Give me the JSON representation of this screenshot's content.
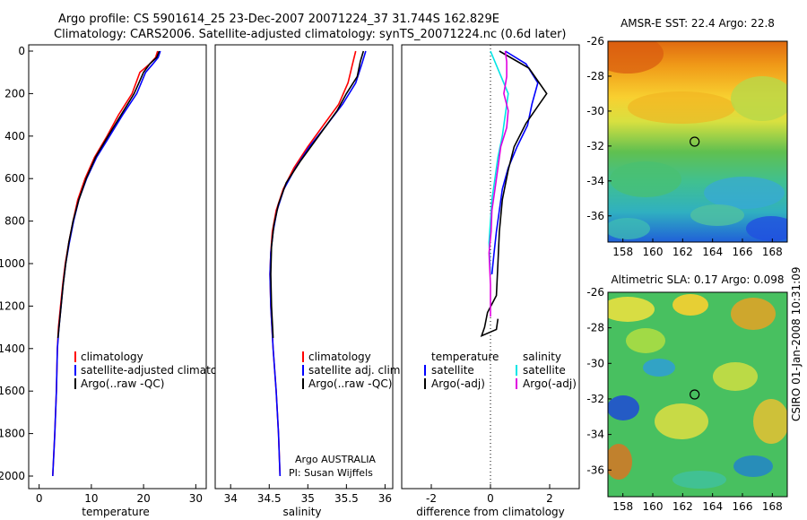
{
  "title_line1": "Argo profile: CS 5901614_25 23-Dec-2007 20071224_37 31.744S 162.829E",
  "title_line2": "Climatology: CARS2006. Satellite-adjusted climatology: synTS_20071224.nc (0.6d later)",
  "side_label": "CSIRO 01-Jan-2008 10:31:09",
  "credit": {
    "line1": "Argo AUSTRALIA",
    "line2": "PI: Susan Wijffels"
  },
  "colors": {
    "climatology": "#ff0000",
    "satellite": "#0000ff",
    "argo": "#000000",
    "sal_satellite": "#00e5e5",
    "sal_argo": "#e000e0"
  },
  "chart_data": [
    {
      "type": "line",
      "xlabel": "temperature",
      "xlim": [
        -2,
        32
      ],
      "xticks": [
        0,
        10,
        20,
        30
      ],
      "ylim": [
        2050,
        0
      ],
      "yticks": [
        0,
        200,
        400,
        600,
        800,
        1000,
        1200,
        1400,
        1600,
        1800,
        2000
      ],
      "legend": [
        "climatology",
        "satellite-adjusted climatology",
        "Argo(..raw -QC)"
      ],
      "series": [
        {
          "name": "climatology",
          "color": "climatology",
          "points": [
            [
              22.7,
              0
            ],
            [
              22.3,
              30
            ],
            [
              21.2,
              60
            ],
            [
              19.3,
              100
            ],
            [
              17.8,
              200
            ],
            [
              15.2,
              300
            ],
            [
              13.0,
              400
            ],
            [
              10.6,
              500
            ],
            [
              8.8,
              600
            ],
            [
              7.4,
              700
            ],
            [
              6.5,
              800
            ],
            [
              5.7,
              900
            ],
            [
              5.0,
              1000
            ],
            [
              4.5,
              1100
            ],
            [
              4.1,
              1200
            ],
            [
              3.7,
              1300
            ],
            [
              3.5,
              1400
            ],
            [
              3.3,
              1600
            ],
            [
              3.0,
              1800
            ],
            [
              2.6,
              2000
            ]
          ]
        },
        {
          "name": "satellite-adjusted climatology",
          "color": "satellite",
          "points": [
            [
              23.2,
              0
            ],
            [
              22.8,
              30
            ],
            [
              21.8,
              60
            ],
            [
              20.4,
              100
            ],
            [
              18.7,
              200
            ],
            [
              16.0,
              300
            ],
            [
              13.5,
              400
            ],
            [
              11.0,
              500
            ],
            [
              9.1,
              600
            ],
            [
              7.6,
              700
            ],
            [
              6.6,
              800
            ],
            [
              5.8,
              900
            ],
            [
              5.1,
              1000
            ],
            [
              4.6,
              1100
            ],
            [
              4.2,
              1200
            ],
            [
              3.8,
              1300
            ],
            [
              3.5,
              1400
            ],
            [
              3.3,
              1600
            ],
            [
              3.0,
              1800
            ],
            [
              2.6,
              2000
            ]
          ]
        },
        {
          "name": "Argo(..raw -QC)",
          "color": "argo",
          "points": [
            [
              23.0,
              0
            ],
            [
              22.5,
              30
            ],
            [
              21.2,
              60
            ],
            [
              20.0,
              100
            ],
            [
              18.2,
              200
            ],
            [
              15.7,
              300
            ],
            [
              13.2,
              400
            ],
            [
              10.8,
              500
            ],
            [
              9.0,
              600
            ],
            [
              7.6,
              700
            ],
            [
              6.5,
              800
            ],
            [
              5.7,
              900
            ],
            [
              5.1,
              1000
            ],
            [
              4.6,
              1100
            ],
            [
              4.2,
              1200
            ],
            [
              3.8,
              1300
            ],
            [
              3.6,
              1350
            ]
          ]
        }
      ]
    },
    {
      "type": "line",
      "xlabel": "salinity",
      "xlim": [
        33.8,
        36.1
      ],
      "xticks": [
        34,
        34.5,
        35,
        35.5,
        36
      ],
      "ylim": [
        2050,
        0
      ],
      "legend": [
        "climatology",
        "satellite adj. clim.",
        "Argo(..raw -QC)"
      ],
      "series": [
        {
          "name": "climatology",
          "color": "climatology",
          "points": [
            [
              35.62,
              0
            ],
            [
              35.58,
              60
            ],
            [
              35.52,
              150
            ],
            [
              35.4,
              250
            ],
            [
              35.2,
              350
            ],
            [
              35.0,
              450
            ],
            [
              34.82,
              550
            ],
            [
              34.68,
              650
            ],
            [
              34.59,
              750
            ],
            [
              34.54,
              850
            ],
            [
              34.52,
              950
            ],
            [
              34.51,
              1050
            ],
            [
              34.52,
              1200
            ],
            [
              34.55,
              1400
            ],
            [
              34.59,
              1600
            ],
            [
              34.62,
              1800
            ],
            [
              34.64,
              2000
            ]
          ]
        },
        {
          "name": "satellite adj. clim.",
          "color": "satellite",
          "points": [
            [
              35.75,
              0
            ],
            [
              35.7,
              60
            ],
            [
              35.62,
              150
            ],
            [
              35.45,
              250
            ],
            [
              35.24,
              350
            ],
            [
              35.02,
              450
            ],
            [
              34.84,
              550
            ],
            [
              34.69,
              650
            ],
            [
              34.6,
              750
            ],
            [
              34.55,
              850
            ],
            [
              34.52,
              950
            ],
            [
              34.51,
              1050
            ],
            [
              34.52,
              1200
            ],
            [
              34.55,
              1400
            ],
            [
              34.59,
              1600
            ],
            [
              34.62,
              1800
            ],
            [
              34.64,
              2000
            ]
          ]
        },
        {
          "name": "Argo(..raw -QC)",
          "color": "argo",
          "points": [
            [
              35.72,
              0
            ],
            [
              35.68,
              50
            ],
            [
              35.64,
              120
            ],
            [
              35.5,
              200
            ],
            [
              35.38,
              280
            ],
            [
              35.3,
              320
            ],
            [
              35.1,
              420
            ],
            [
              34.9,
              520
            ],
            [
              34.72,
              620
            ],
            [
              34.62,
              720
            ],
            [
              34.56,
              820
            ],
            [
              34.53,
              920
            ],
            [
              34.52,
              1050
            ],
            [
              34.53,
              1200
            ],
            [
              34.55,
              1350
            ]
          ]
        }
      ]
    },
    {
      "type": "line",
      "xlabel": "difference from climatology",
      "xlim": [
        -3,
        3
      ],
      "xticks": [
        -2,
        0,
        2
      ],
      "ylim": [
        2050,
        0
      ],
      "legend": {
        "temperature": [
          "satellite",
          "Argo(-adj)"
        ],
        "salinity": [
          "satellite",
          "Argo(-adj)"
        ]
      },
      "series": [
        {
          "name": "temperature satellite",
          "color": "satellite",
          "points": [
            [
              0.5,
              0
            ],
            [
              1.2,
              60
            ],
            [
              1.6,
              150
            ],
            [
              1.4,
              250
            ],
            [
              1.25,
              350
            ],
            [
              0.9,
              450
            ],
            [
              0.6,
              550
            ],
            [
              0.4,
              650
            ],
            [
              0.3,
              750
            ],
            [
              0.2,
              850
            ],
            [
              0.12,
              950
            ],
            [
              0.05,
              1050
            ]
          ]
        },
        {
          "name": "temperature Argo(-adj)",
          "color": "argo",
          "points": [
            [
              0.3,
              0
            ],
            [
              1.3,
              80
            ],
            [
              1.9,
              200
            ],
            [
              1.6,
              260
            ],
            [
              1.2,
              340
            ],
            [
              0.8,
              450
            ],
            [
              0.6,
              560
            ],
            [
              0.4,
              700
            ],
            [
              0.3,
              850
            ],
            [
              0.25,
              1000
            ],
            [
              0.2,
              1150
            ],
            [
              -0.1,
              1230
            ],
            [
              -0.2,
              1300
            ],
            [
              -0.3,
              1340
            ],
            [
              0.2,
              1310
            ],
            [
              0.25,
              1260
            ]
          ]
        },
        {
          "name": "salinity satellite",
          "color": "sal_satellite",
          "points": [
            [
              0.0,
              0
            ],
            [
              0.3,
              100
            ],
            [
              0.6,
              200
            ],
            [
              0.5,
              300
            ],
            [
              0.4,
              400
            ],
            [
              0.25,
              500
            ],
            [
              0.15,
              600
            ],
            [
              0.05,
              700
            ],
            [
              0.0,
              800
            ],
            [
              -0.05,
              900
            ],
            [
              0.0,
              1050
            ]
          ]
        },
        {
          "name": "salinity Argo(-adj)",
          "color": "sal_argo",
          "points": [
            [
              0.5,
              0
            ],
            [
              0.55,
              50
            ],
            [
              0.55,
              120
            ],
            [
              0.45,
              200
            ],
            [
              0.6,
              280
            ],
            [
              0.55,
              360
            ],
            [
              0.35,
              450
            ],
            [
              0.25,
              550
            ],
            [
              0.15,
              650
            ],
            [
              0.05,
              750
            ],
            [
              0.02,
              850
            ],
            [
              -0.05,
              950
            ],
            [
              0.0,
              1100
            ],
            [
              0.0,
              1250
            ]
          ]
        }
      ]
    },
    {
      "type": "heatmap",
      "title": "AMSR-E SST: 22.4 Argo: 22.8",
      "xlim": [
        157,
        169
      ],
      "xticks": [
        158,
        160,
        162,
        164,
        166,
        168
      ],
      "ylim": [
        -37.5,
        -26
      ],
      "yticks": [
        -26,
        -28,
        -30,
        -32,
        -34,
        -36
      ],
      "marker": [
        162.8,
        -31.75
      ]
    },
    {
      "type": "heatmap",
      "title": "Altimetric SLA: 0.17 Argo: 0.098",
      "xlim": [
        157,
        169
      ],
      "xticks": [
        158,
        160,
        162,
        164,
        166,
        168
      ],
      "ylim": [
        -37.5,
        -26
      ],
      "yticks": [
        -26,
        -28,
        -30,
        -32,
        -34,
        -36
      ],
      "marker": [
        162.8,
        -31.75
      ]
    }
  ]
}
